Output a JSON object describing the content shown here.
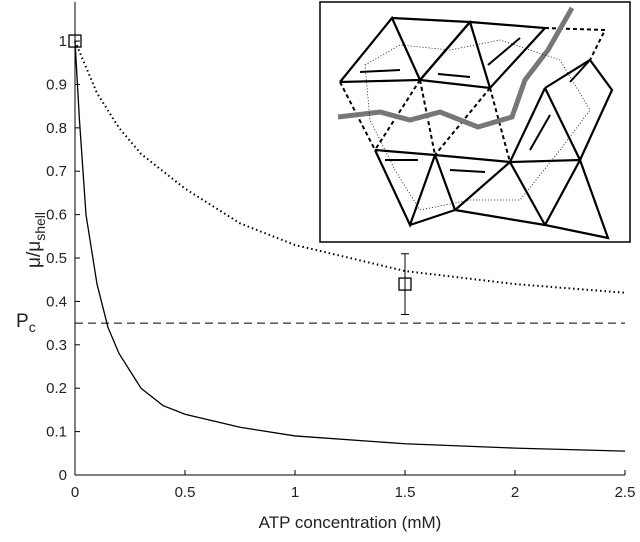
{
  "chart_data": {
    "type": "line",
    "x_label": "ATP concentration (mM)",
    "y_label": {
      "main": "μ/μ",
      "sub": "shell"
    },
    "xlim": [
      0,
      2.5
    ],
    "xticks": [
      0,
      0.5,
      1,
      1.5,
      2,
      2.5
    ],
    "ylim": [
      0,
      1.09
    ],
    "yticks": [
      0,
      0.1,
      0.2,
      0.3,
      0.4,
      0.5,
      0.6,
      0.7,
      0.8,
      0.9,
      1
    ],
    "series": [
      {
        "style": "solid",
        "color": "#000000",
        "x": [
          0,
          0.02,
          0.05,
          0.1,
          0.15,
          0.2,
          0.3,
          0.4,
          0.5,
          0.75,
          1,
          1.5,
          2,
          2.5
        ],
        "values": [
          1,
          0.82,
          0.6,
          0.44,
          0.34,
          0.28,
          0.2,
          0.16,
          0.14,
          0.11,
          0.09,
          0.072,
          0.062,
          0.055
        ]
      },
      {
        "style": "dotted",
        "color": "#000000",
        "x": [
          0,
          0.05,
          0.1,
          0.2,
          0.3,
          0.5,
          0.75,
          1,
          1.5,
          2,
          2.5
        ],
        "values": [
          1,
          0.94,
          0.88,
          0.8,
          0.74,
          0.66,
          0.58,
          0.53,
          0.47,
          0.44,
          0.42
        ]
      }
    ],
    "points": {
      "x": [
        0,
        1.5
      ],
      "values": [
        1,
        0.44
      ],
      "errors": [
        null,
        0.07
      ]
    },
    "threshold": {
      "value": 0.35,
      "label": {
        "main": "P",
        "sub": "c"
      }
    }
  }
}
